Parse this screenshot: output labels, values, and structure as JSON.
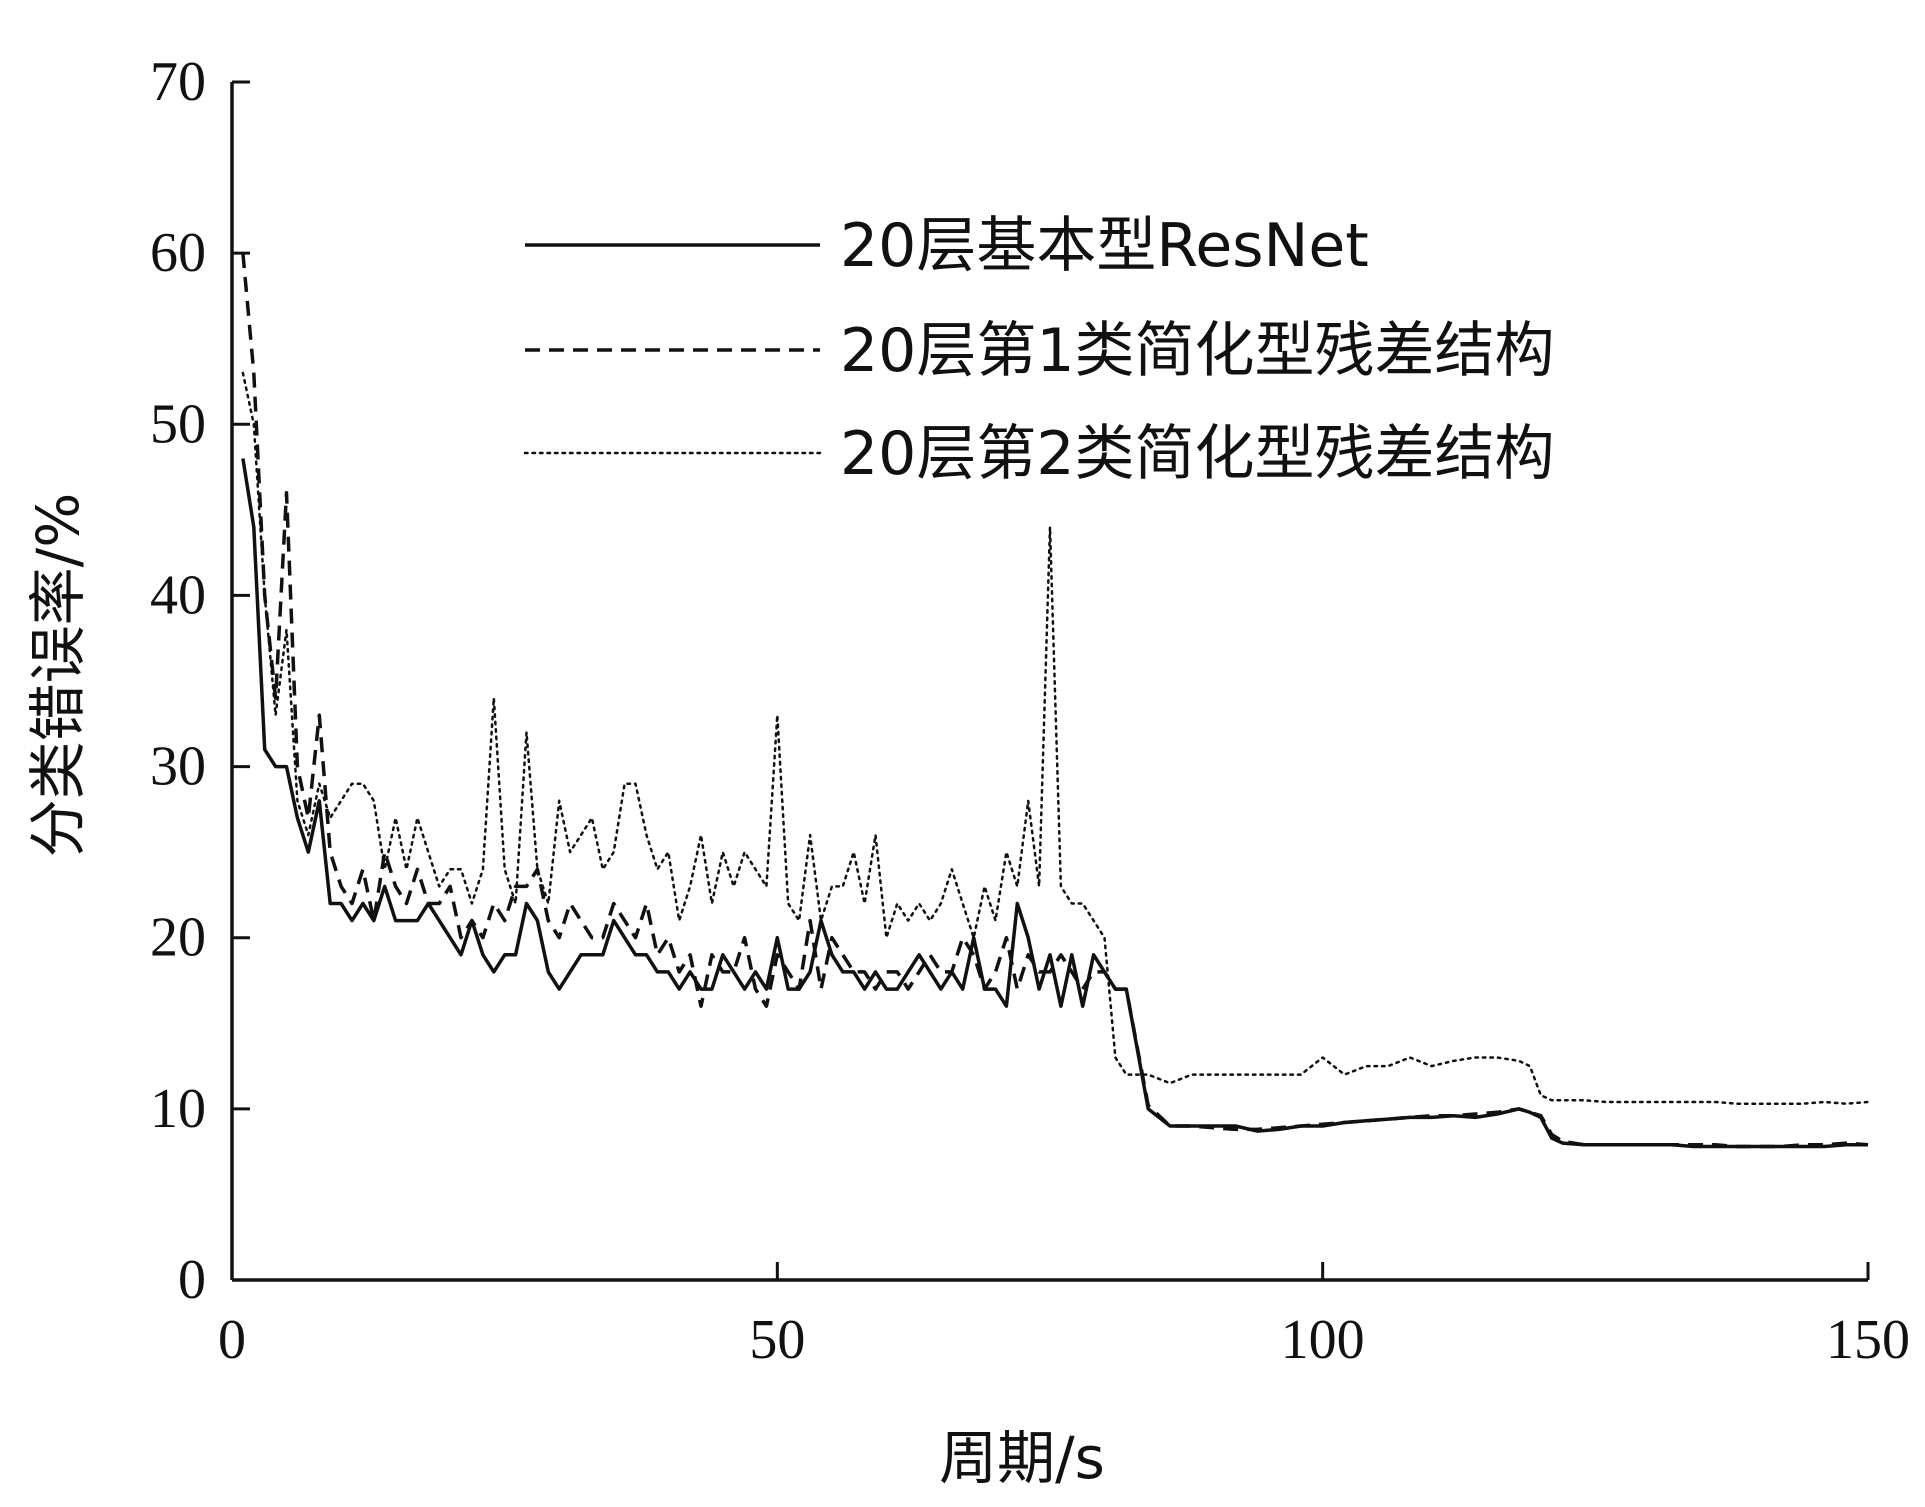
{
  "chart_data": {
    "type": "line",
    "xlabel": "周期/s",
    "ylabel": "分类错误率/%",
    "xlim": [
      0,
      150
    ],
    "ylim": [
      0,
      70
    ],
    "xticks": [
      0,
      50,
      100,
      150
    ],
    "yticks": [
      0,
      10,
      20,
      30,
      40,
      50,
      60,
      70
    ],
    "grid": false,
    "legend_position": "top-right",
    "series": [
      {
        "name": "20层基本型ResNet",
        "line_style": "solid",
        "color": "#111111",
        "x": [
          1,
          2,
          3,
          4,
          5,
          6,
          7,
          8,
          9,
          10,
          11,
          12,
          13,
          14,
          15,
          16,
          17,
          18,
          19,
          20,
          21,
          22,
          23,
          24,
          25,
          26,
          27,
          28,
          29,
          30,
          31,
          32,
          33,
          34,
          35,
          36,
          37,
          38,
          39,
          40,
          41,
          42,
          43,
          44,
          45,
          46,
          47,
          48,
          49,
          50,
          51,
          52,
          53,
          54,
          55,
          56,
          57,
          58,
          59,
          60,
          61,
          62,
          63,
          64,
          65,
          66,
          67,
          68,
          69,
          70,
          71,
          72,
          73,
          74,
          75,
          76,
          77,
          78,
          79,
          80,
          81,
          82,
          84,
          86,
          88,
          90,
          92,
          94,
          96,
          98,
          100,
          102,
          104,
          106,
          108,
          110,
          112,
          114,
          116,
          118,
          119,
          120,
          121,
          122,
          124,
          126,
          128,
          130,
          132,
          134,
          136,
          138,
          140,
          142,
          144,
          146,
          148,
          150
        ],
        "y": [
          48,
          44,
          31,
          30,
          30,
          27,
          25,
          28,
          22,
          22,
          21,
          22,
          21,
          23,
          21,
          21,
          21,
          22,
          21,
          20,
          19,
          21,
          19,
          18,
          19,
          19,
          22,
          21,
          18,
          17,
          18,
          19,
          19,
          19,
          21,
          20,
          19,
          19,
          18,
          18,
          17,
          18,
          17,
          17,
          19,
          18,
          17,
          18,
          17,
          20,
          17,
          17,
          18,
          21,
          19,
          18,
          18,
          17,
          18,
          17,
          17,
          18,
          19,
          18,
          17,
          18,
          17,
          20,
          17,
          17,
          16,
          22,
          20,
          17,
          19,
          16,
          19,
          16,
          19,
          18,
          17,
          17,
          10,
          9,
          9,
          9,
          9,
          8.7,
          8.8,
          9,
          9,
          9.2,
          9.3,
          9.4,
          9.5,
          9.5,
          9.6,
          9.5,
          9.7,
          10,
          9.8,
          9.5,
          8.3,
          8,
          7.9,
          7.9,
          7.9,
          7.9,
          7.9,
          7.8,
          7.8,
          7.8,
          7.8,
          7.8,
          7.8,
          7.8,
          7.9,
          7.9
        ]
      },
      {
        "name": "20层第1类简化型残差结构",
        "line_style": "dashed",
        "color": "#111111",
        "x": [
          1,
          2,
          3,
          4,
          5,
          6,
          7,
          8,
          9,
          10,
          11,
          12,
          13,
          14,
          15,
          16,
          17,
          18,
          19,
          20,
          21,
          22,
          23,
          24,
          25,
          26,
          27,
          28,
          29,
          30,
          31,
          32,
          33,
          34,
          35,
          36,
          37,
          38,
          39,
          40,
          41,
          42,
          43,
          44,
          45,
          46,
          47,
          48,
          49,
          50,
          51,
          52,
          53,
          54,
          55,
          56,
          57,
          58,
          59,
          60,
          61,
          62,
          63,
          64,
          65,
          66,
          67,
          68,
          69,
          70,
          71,
          72,
          73,
          74,
          75,
          76,
          77,
          78,
          79,
          80,
          81,
          82,
          84,
          86,
          88,
          90,
          92,
          94,
          96,
          98,
          100,
          102,
          104,
          106,
          108,
          110,
          112,
          114,
          116,
          118,
          119,
          120,
          121,
          122,
          124,
          126,
          128,
          130,
          132,
          134,
          136,
          138,
          140,
          142,
          144,
          146,
          148,
          150
        ],
        "y": [
          60,
          53,
          40,
          34,
          46,
          30,
          27,
          33,
          25,
          23,
          22,
          24,
          21,
          25,
          23,
          22,
          24,
          22,
          22,
          23,
          20,
          21,
          20,
          22,
          21,
          23,
          23,
          24,
          21,
          20,
          22,
          21,
          20,
          20,
          22,
          21,
          20,
          22,
          19,
          20,
          18,
          19,
          16,
          19,
          18,
          18,
          20,
          17,
          16,
          19,
          18,
          17,
          21,
          17,
          20,
          19,
          18,
          18,
          17,
          18,
          18,
          17,
          18,
          19,
          18,
          18,
          20,
          19,
          17,
          18,
          20,
          17,
          19,
          18,
          18,
          19,
          18,
          17,
          18,
          18,
          17,
          17,
          10.2,
          9,
          9,
          8.9,
          8.8,
          8.8,
          8.9,
          9,
          9.1,
          9.2,
          9.3,
          9.4,
          9.5,
          9.6,
          9.6,
          9.7,
          9.8,
          10,
          9.8,
          9.6,
          8.5,
          8.1,
          7.9,
          7.9,
          7.9,
          7.9,
          7.9,
          7.9,
          7.9,
          7.8,
          7.8,
          7.8,
          7.9,
          7.9,
          8,
          7.9
        ]
      },
      {
        "name": "20层第2类简化型残差结构",
        "line_style": "dotted",
        "color": "#111111",
        "x": [
          1,
          2,
          3,
          4,
          5,
          6,
          7,
          8,
          9,
          10,
          11,
          12,
          13,
          14,
          15,
          16,
          17,
          18,
          19,
          20,
          21,
          22,
          23,
          24,
          25,
          26,
          27,
          28,
          29,
          30,
          31,
          32,
          33,
          34,
          35,
          36,
          37,
          38,
          39,
          40,
          41,
          42,
          43,
          44,
          45,
          46,
          47,
          48,
          49,
          50,
          51,
          52,
          53,
          54,
          55,
          56,
          57,
          58,
          59,
          60,
          61,
          62,
          63,
          64,
          65,
          66,
          67,
          68,
          69,
          70,
          71,
          72,
          73,
          74,
          75,
          76,
          77,
          78,
          79,
          80,
          81,
          82,
          84,
          86,
          88,
          90,
          92,
          94,
          96,
          98,
          100,
          102,
          104,
          106,
          108,
          110,
          112,
          114,
          116,
          118,
          119,
          120,
          121,
          122,
          124,
          126,
          128,
          130,
          132,
          134,
          136,
          138,
          140,
          142,
          144,
          146,
          148,
          150
        ],
        "y": [
          53,
          50,
          40,
          33,
          38,
          28,
          26,
          29,
          27,
          28,
          29,
          29,
          28,
          24,
          27,
          24,
          27,
          25,
          23,
          24,
          24,
          22,
          24,
          34,
          24,
          22,
          32,
          24,
          22,
          28,
          25,
          26,
          27,
          24,
          25,
          29,
          29,
          26,
          24,
          25,
          21,
          23,
          26,
          22,
          25,
          23,
          25,
          24,
          23,
          33,
          22,
          21,
          26,
          21,
          23,
          23,
          25,
          22,
          26,
          20,
          22,
          21,
          22,
          21,
          22,
          24,
          22,
          20,
          23,
          21,
          25,
          23,
          28,
          23,
          44,
          23,
          22,
          22,
          21,
          20,
          13,
          12,
          12,
          11.5,
          12,
          12,
          12,
          12,
          12,
          12,
          13,
          12,
          12.5,
          12.5,
          13,
          12.5,
          12.8,
          13,
          13,
          12.8,
          12.5,
          10.8,
          10.5,
          10.5,
          10.5,
          10.4,
          10.4,
          10.4,
          10.4,
          10.4,
          10.4,
          10.3,
          10.3,
          10.3,
          10.3,
          10.4,
          10.3,
          10.4
        ]
      }
    ]
  }
}
